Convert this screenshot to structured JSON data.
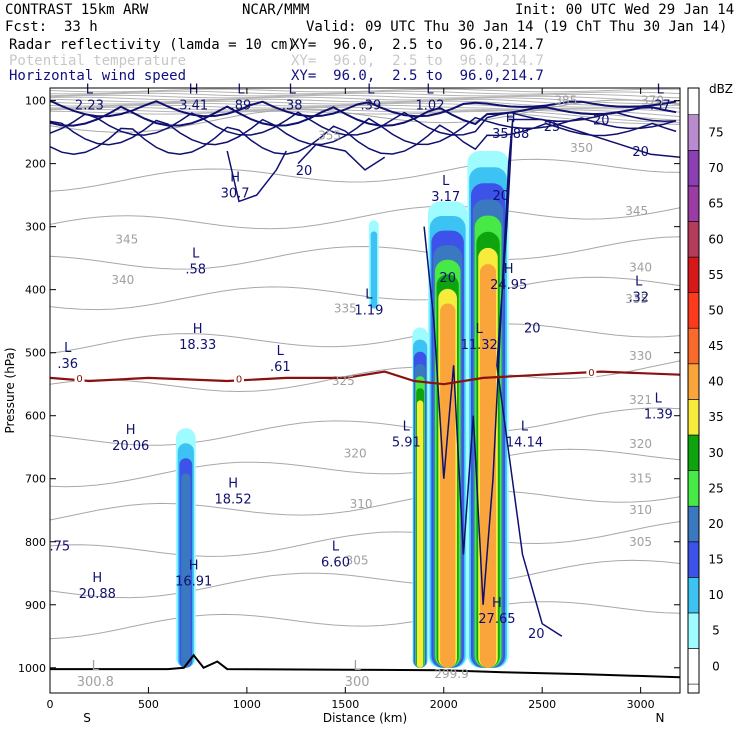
{
  "header": {
    "model": "CONTRAST 15km ARW",
    "org": "NCAR/MMM",
    "init": "Init: 00 UTC Wed 29 Jan 14",
    "fcst_label": "Fcst:",
    "fcst_value": "33 h",
    "valid": "Valid: 09 UTC Thu 30 Jan 14 (19 ChT Thu 30 Jan 14)",
    "fields": [
      {
        "name": "Radar reflectivity (lamda = 10 cm)",
        "xy": "XY=  96.0,  2.5 to  96.0,214.7",
        "color": "#000000"
      },
      {
        "name": "Potential temperature",
        "xy": "XY=  96.0,  2.5 to  96.0,214.7",
        "color": "#c8c8c8"
      },
      {
        "name": "Horizontal wind speed",
        "xy": "XY=  96.0,  2.5 to  96.0,214.7",
        "color": "#101080"
      }
    ]
  },
  "chart_data": {
    "type": "cross-section",
    "xlabel": "Distance (km)",
    "ylabel": "Pressure (hPa)",
    "xlim": [
      0,
      3200
    ],
    "ylim": [
      1040,
      80
    ],
    "x_ticks": [
      0,
      500,
      1000,
      1500,
      2000,
      2500,
      3000
    ],
    "y_ticks": [
      100,
      200,
      300,
      400,
      500,
      600,
      700,
      800,
      900,
      1000
    ],
    "x_end_labels": {
      "left": "S",
      "right": "N"
    },
    "colorbar": {
      "unit": "dBZ",
      "levels": [
        0,
        5,
        10,
        15,
        20,
        25,
        30,
        35,
        40,
        45,
        50,
        55,
        60,
        65,
        70,
        75
      ],
      "colors": [
        "#ffffff",
        "#9efbff",
        "#3cc3f3",
        "#3c52e8",
        "#3a78c0",
        "#46e946",
        "#0da40d",
        "#f7ec3c",
        "#f9a53b",
        "#fb6a2d",
        "#fb3a1e",
        "#d71818",
        "#b43b5a",
        "#9b3ca3",
        "#8a3fb3",
        "#b98cd0"
      ]
    },
    "reflectivity_cells": [
      {
        "x_range": [
          640,
          740
        ],
        "p_range": [
          620,
          1000
        ],
        "max_dbz": 20
      },
      {
        "x_range": [
          1620,
          1670
        ],
        "p_range": [
          290,
          430
        ],
        "max_dbz": 10
      },
      {
        "x_range": [
          1840,
          1920
        ],
        "p_range": [
          460,
          1000
        ],
        "max_dbz": 35
      },
      {
        "x_range": [
          1920,
          2120
        ],
        "p_range": [
          260,
          1000
        ],
        "max_dbz": 40
      },
      {
        "x_range": [
          2120,
          2330
        ],
        "p_range": [
          180,
          1000
        ],
        "max_dbz": 40
      }
    ],
    "zero_isotherm": {
      "label": "0",
      "x": [
        0,
        200,
        500,
        900,
        1200,
        1500,
        1700,
        1850,
        2000,
        2200,
        2500,
        2800,
        3200
      ],
      "p": [
        540,
        545,
        540,
        545,
        540,
        540,
        530,
        545,
        550,
        540,
        535,
        530,
        535
      ]
    },
    "terrain": {
      "x": [
        0,
        600,
        680,
        730,
        780,
        850,
        900,
        1500,
        2000,
        2300,
        2700,
        3200
      ],
      "p": [
        1002,
        1002,
        1000,
        980,
        1000,
        990,
        1002,
        1003,
        1004,
        1007,
        1010,
        1015
      ]
    },
    "theta_labels": [
      {
        "x": 2620,
        "p": 100,
        "text": "385"
      },
      {
        "x": 3060,
        "p": 100,
        "text": "370"
      },
      {
        "x": 2700,
        "p": 175,
        "text": "350"
      },
      {
        "x": 1420,
        "p": 155,
        "text": "355"
      },
      {
        "x": 2980,
        "p": 275,
        "text": "345"
      },
      {
        "x": 3000,
        "p": 365,
        "text": "340"
      },
      {
        "x": 2980,
        "p": 415,
        "text": "335"
      },
      {
        "x": 3000,
        "p": 505,
        "text": "330"
      },
      {
        "x": 1490,
        "p": 545,
        "text": "325"
      },
      {
        "x": 3000,
        "p": 575,
        "text": "321"
      },
      {
        "x": 3000,
        "p": 645,
        "text": "320"
      },
      {
        "x": 3000,
        "p": 700,
        "text": "315"
      },
      {
        "x": 3000,
        "p": 750,
        "text": "310"
      },
      {
        "x": 3000,
        "p": 800,
        "text": "305"
      },
      {
        "x": 390,
        "p": 320,
        "text": "345"
      },
      {
        "x": 370,
        "p": 385,
        "text": "340"
      },
      {
        "x": 1500,
        "p": 430,
        "text": "335"
      },
      {
        "x": 1550,
        "p": 660,
        "text": "320"
      },
      {
        "x": 1580,
        "p": 740,
        "text": "310"
      },
      {
        "x": 1560,
        "p": 830,
        "text": "305"
      },
      {
        "x": 2040,
        "p": 1010,
        "text": "299.9"
      }
    ],
    "wind_labels": [
      {
        "x": 2800,
        "p": 130,
        "text": "20"
      },
      {
        "x": 2550,
        "p": 140,
        "text": "25"
      },
      {
        "x": 3000,
        "p": 180,
        "text": "20"
      },
      {
        "x": 1290,
        "p": 210,
        "text": "20"
      },
      {
        "x": 2290,
        "p": 250,
        "text": "20"
      },
      {
        "x": 2020,
        "p": 380,
        "text": "20"
      },
      {
        "x": 2450,
        "p": 460,
        "text": "20"
      },
      {
        "x": 2470,
        "p": 945,
        "text": "20"
      }
    ],
    "extrema": [
      {
        "x": 200,
        "p": 95,
        "type": "L",
        "value": "2.23"
      },
      {
        "x": 730,
        "p": 95,
        "type": "H",
        "value": "3.41"
      },
      {
        "x": 970,
        "p": 95,
        "type": "L",
        "value": ".89"
      },
      {
        "x": 1230,
        "p": 95,
        "type": "L",
        "value": ".38"
      },
      {
        "x": 1630,
        "p": 95,
        "type": "L",
        "value": ".39"
      },
      {
        "x": 1930,
        "p": 95,
        "type": "L",
        "value": "1.02"
      },
      {
        "x": 3100,
        "p": 95,
        "type": "L",
        "value": ".37"
      },
      {
        "x": 2340,
        "p": 140,
        "type": "H",
        "value": "35.88"
      },
      {
        "x": 940,
        "p": 235,
        "type": "H",
        "value": "30.7"
      },
      {
        "x": 2010,
        "p": 240,
        "type": "L",
        "value": "3.17"
      },
      {
        "x": 740,
        "p": 355,
        "type": "L",
        "value": ".58"
      },
      {
        "x": 2330,
        "p": 380,
        "type": "H",
        "value": "24.95"
      },
      {
        "x": 2990,
        "p": 400,
        "type": "L",
        "value": ".32"
      },
      {
        "x": 1620,
        "p": 420,
        "type": "L",
        "value": "1.19"
      },
      {
        "x": 750,
        "p": 475,
        "type": "H",
        "value": "18.33"
      },
      {
        "x": 2180,
        "p": 475,
        "type": "L",
        "value": "11.32"
      },
      {
        "x": 90,
        "p": 505,
        "type": "L",
        "value": ".36"
      },
      {
        "x": 1170,
        "p": 510,
        "type": "L",
        "value": ".61"
      },
      {
        "x": 3090,
        "p": 585,
        "type": "L",
        "value": "1.39"
      },
      {
        "x": 410,
        "p": 635,
        "type": "H",
        "value": "20.06"
      },
      {
        "x": 1810,
        "p": 630,
        "type": "L",
        "value": "5.91"
      },
      {
        "x": 2410,
        "p": 630,
        "type": "L",
        "value": "14.14"
      },
      {
        "x": 930,
        "p": 720,
        "type": "H",
        "value": "18.52"
      },
      {
        "x": 50,
        "p": 795,
        "type": "",
        "value": ".75"
      },
      {
        "x": 1450,
        "p": 820,
        "type": "L",
        "value": "6.60"
      },
      {
        "x": 730,
        "p": 850,
        "type": "H",
        "value": "16.91"
      },
      {
        "x": 240,
        "p": 870,
        "type": "H",
        "value": "20.88"
      },
      {
        "x": 2270,
        "p": 910,
        "type": "H",
        "value": "27.65"
      },
      {
        "x": 230,
        "p": 1010,
        "type": "L",
        "value": "300.8"
      },
      {
        "x": 1560,
        "p": 1010,
        "type": "L",
        "value": "300"
      }
    ]
  }
}
